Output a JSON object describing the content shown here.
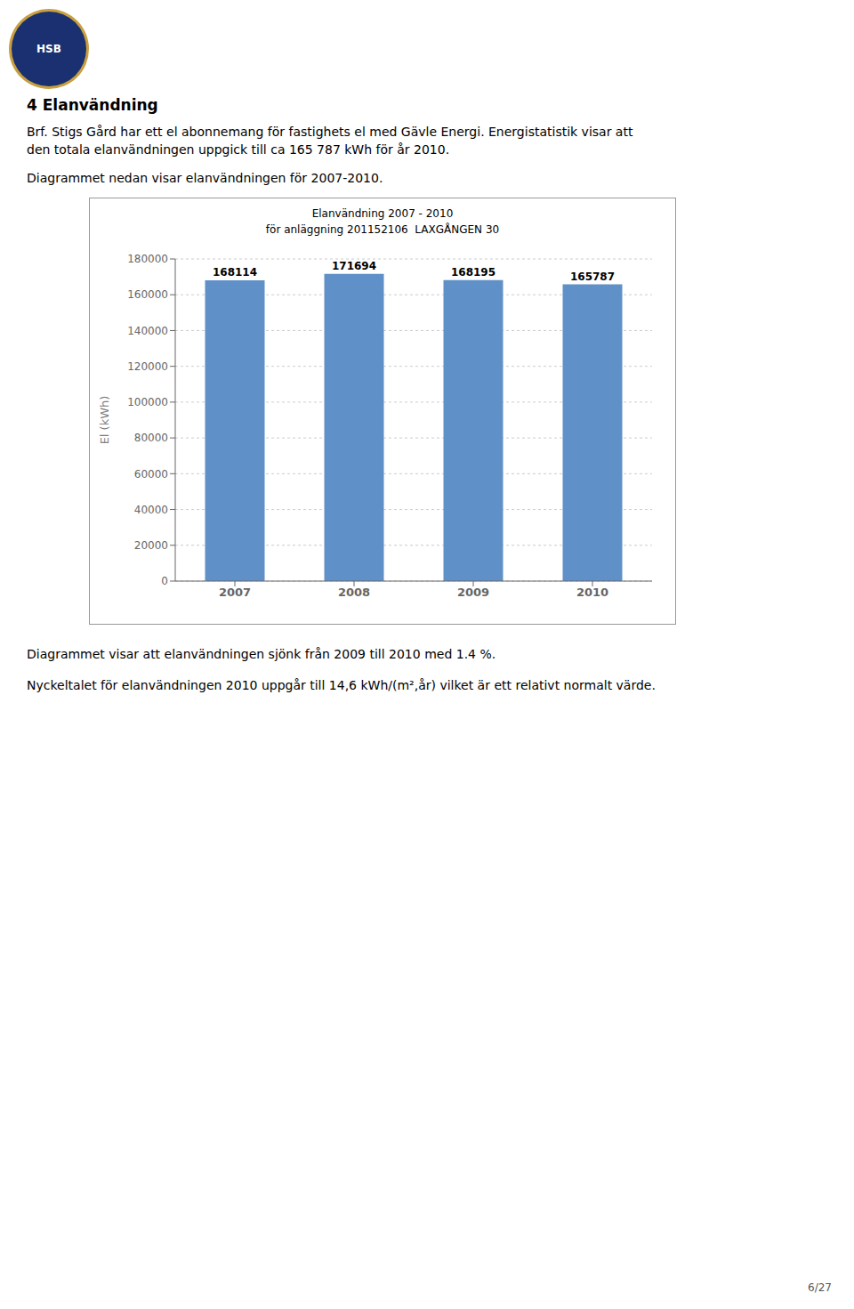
{
  "chart_data": {
    "type": "bar",
    "title": "Elanvändning 2007 - 2010",
    "subtitle": "för anläggning 201152106  LAXGÅNGEN 30",
    "categories": [
      "2007",
      "2008",
      "2009",
      "2010"
    ],
    "values": [
      168114,
      171694,
      168195,
      165787
    ],
    "color": "#6090c8",
    "ylabel": "El (kWh)",
    "ylim": [
      0,
      180000
    ],
    "yticks": [
      0,
      20000,
      40000,
      60000,
      80000,
      100000,
      120000,
      140000,
      160000,
      180000
    ],
    "grid": true,
    "data_labels": true,
    "annotations": [
      "HSB",
      "4 Elanvändning",
      "Brf. Stigs Gård har ett el abonnemang för fastighets el med Gävle Energi. Energistatistik visar att",
      "den totala elanvändningen uppgick till ca 165 787 kWh för år 2010.",
      "Diagrammet nedan visar elanvändningen för 2007-2010.",
      "Diagrammet visar att elanvändningen sjönk från 2009 till 2010 med 1.4 %.",
      "Nyckeltalet för elanvändningen 2010 uppgår till 14,6 kWh/(m²,år) vilket är ett relativt normalt värde.",
      "6/27"
    ]
  }
}
